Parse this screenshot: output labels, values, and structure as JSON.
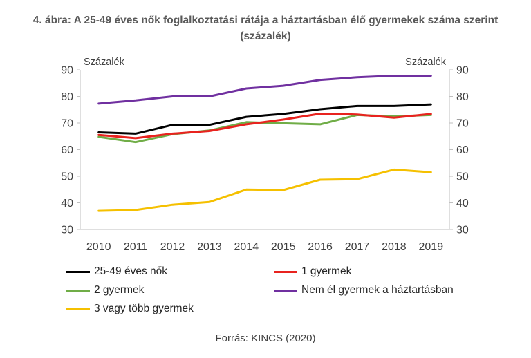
{
  "header": {
    "title_line1": "4. ábra: A 25-49 éves nők foglalkoztatási rátája a háztartásban élő gyermekek száma szerint",
    "title_line2": "(százalék)"
  },
  "chart_data": {
    "type": "line",
    "title": "4. ábra: A 25-49 éves nők foglalkoztatási rátája a háztartásban élő gyermekek száma szerint (százalék)",
    "y_unit_left": "Százalék",
    "y_unit_right": "Százalék",
    "ylim": [
      30,
      90
    ],
    "yticks": [
      30,
      40,
      50,
      60,
      70,
      80,
      90
    ],
    "x": [
      "2010",
      "2011",
      "2012",
      "2013",
      "2014",
      "2015",
      "2016",
      "2017",
      "2018",
      "2019"
    ],
    "grid": false,
    "legend_position": "bottom",
    "series": [
      {
        "name": "25-49 éves nők",
        "color": "#000000",
        "values": [
          66.5,
          66.0,
          69.3,
          69.3,
          72.3,
          73.4,
          75.2,
          76.4,
          76.4,
          77.0
        ]
      },
      {
        "name": "1 gyermek",
        "color": "#e8231f",
        "values": [
          65.5,
          64.3,
          66.0,
          67.0,
          69.5,
          71.3,
          73.5,
          73.2,
          72.0,
          73.4
        ]
      },
      {
        "name": "2 gyermek",
        "color": "#70ad47",
        "values": [
          64.8,
          62.8,
          65.8,
          67.2,
          70.3,
          69.9,
          69.5,
          73.0,
          72.5,
          73.0
        ]
      },
      {
        "name": "Nem él gyermek a háztartásban",
        "color": "#7030a0",
        "values": [
          77.3,
          78.5,
          80.0,
          80.0,
          83.0,
          84.0,
          86.2,
          87.2,
          87.8,
          87.8
        ]
      },
      {
        "name": "3 vagy több gyermek",
        "color": "#f5c000",
        "values": [
          37.0,
          37.3,
          39.3,
          40.3,
          45.0,
          44.8,
          48.7,
          48.9,
          52.5,
          51.5
        ]
      }
    ]
  },
  "source": "Forrás: KINCS (2020)"
}
